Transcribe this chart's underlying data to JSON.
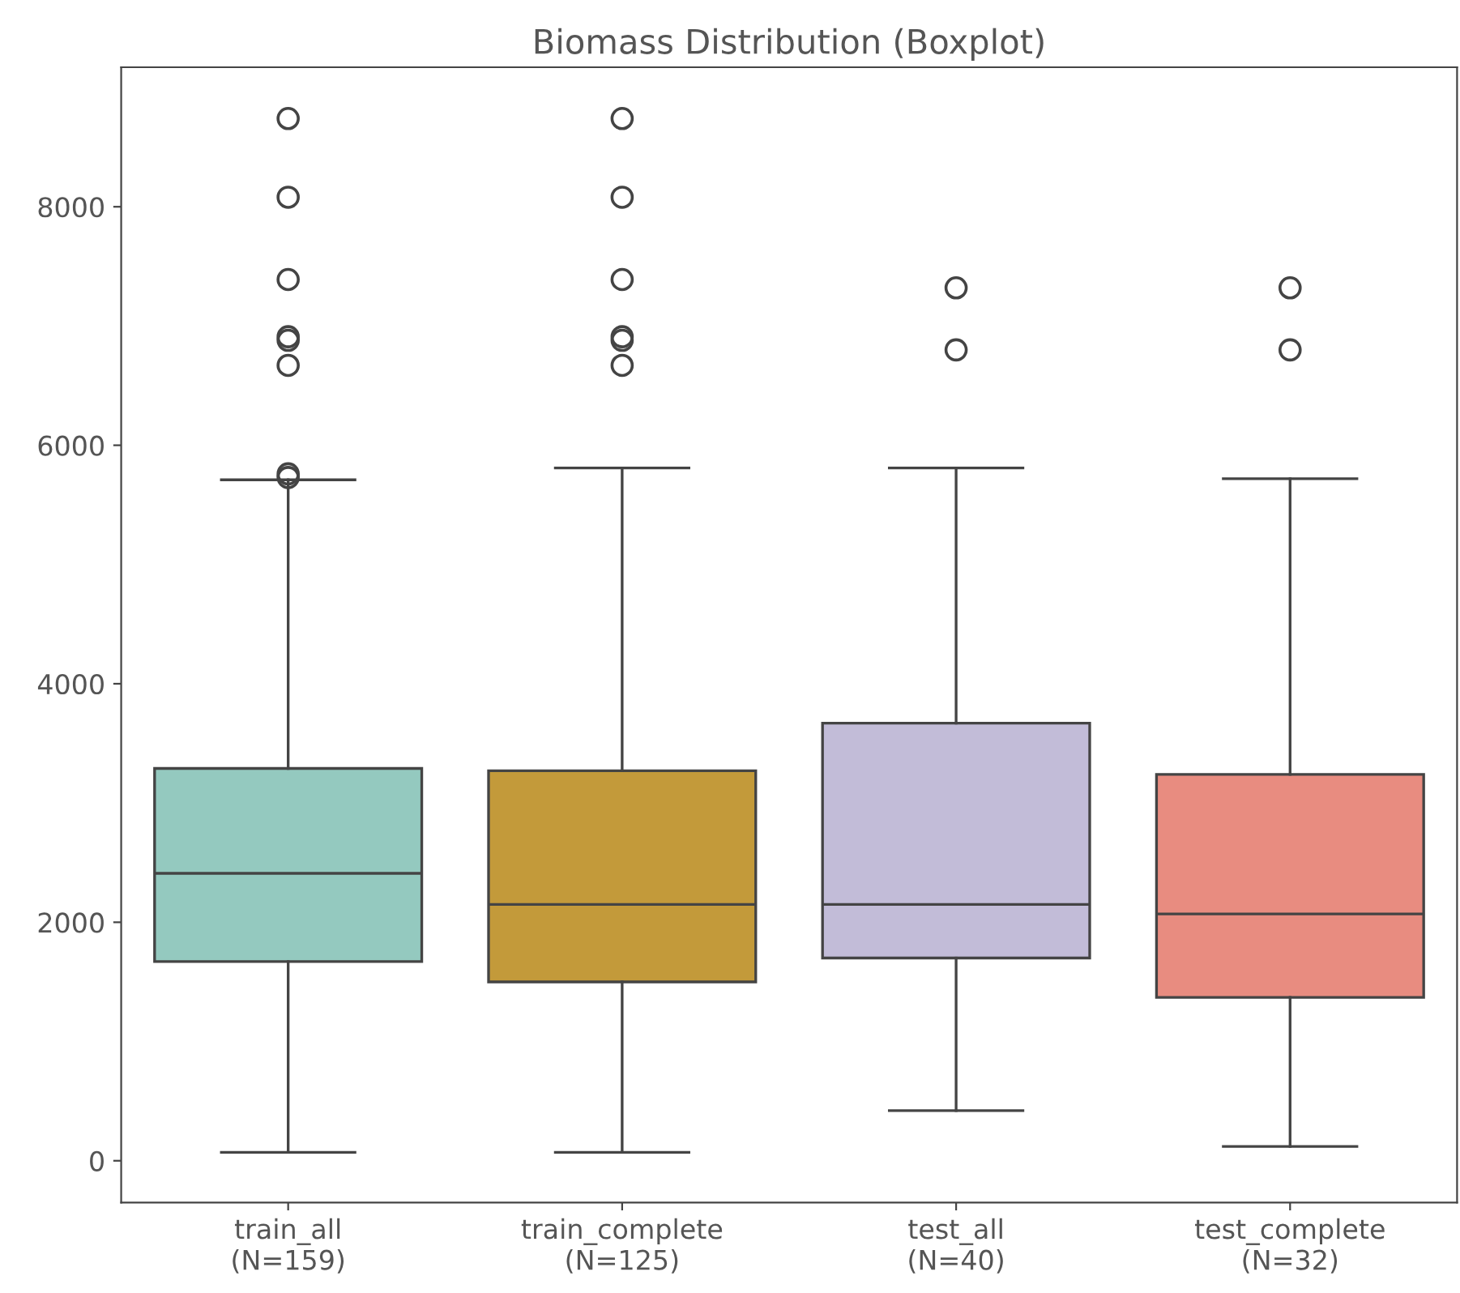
{
  "chart_data": {
    "type": "box",
    "title": "Biomass Distribution (Boxplot)",
    "categories": [
      "train_all\n(N=159)",
      "train_complete\n(N=125)",
      "test_all\n(N=40)",
      "test_complete\n(N=32)"
    ],
    "colors": [
      "#94c9bf",
      "#c39a3a",
      "#c2bcd8",
      "#e88c80"
    ],
    "boxes": [
      {
        "low": 70,
        "q1": 1670,
        "median": 2410,
        "q3": 3290,
        "high": 5710,
        "outliers": [
          5730,
          5760,
          6670,
          6880,
          6910,
          7390,
          8080,
          8740
        ]
      },
      {
        "low": 70,
        "q1": 1500,
        "median": 2150,
        "q3": 3270,
        "high": 5810,
        "outliers": [
          6670,
          6880,
          6910,
          7390,
          8080,
          8740
        ]
      },
      {
        "low": 420,
        "q1": 1700,
        "median": 2150,
        "q3": 3670,
        "high": 5810,
        "outliers": [
          6800,
          7320
        ]
      },
      {
        "low": 120,
        "q1": 1370,
        "median": 2070,
        "q3": 3240,
        "high": 5720,
        "outliers": [
          6800,
          7320
        ]
      }
    ],
    "ylim": [
      -350,
      9170
    ],
    "yticks": [
      0,
      2000,
      4000,
      6000,
      8000
    ],
    "grid": false
  }
}
